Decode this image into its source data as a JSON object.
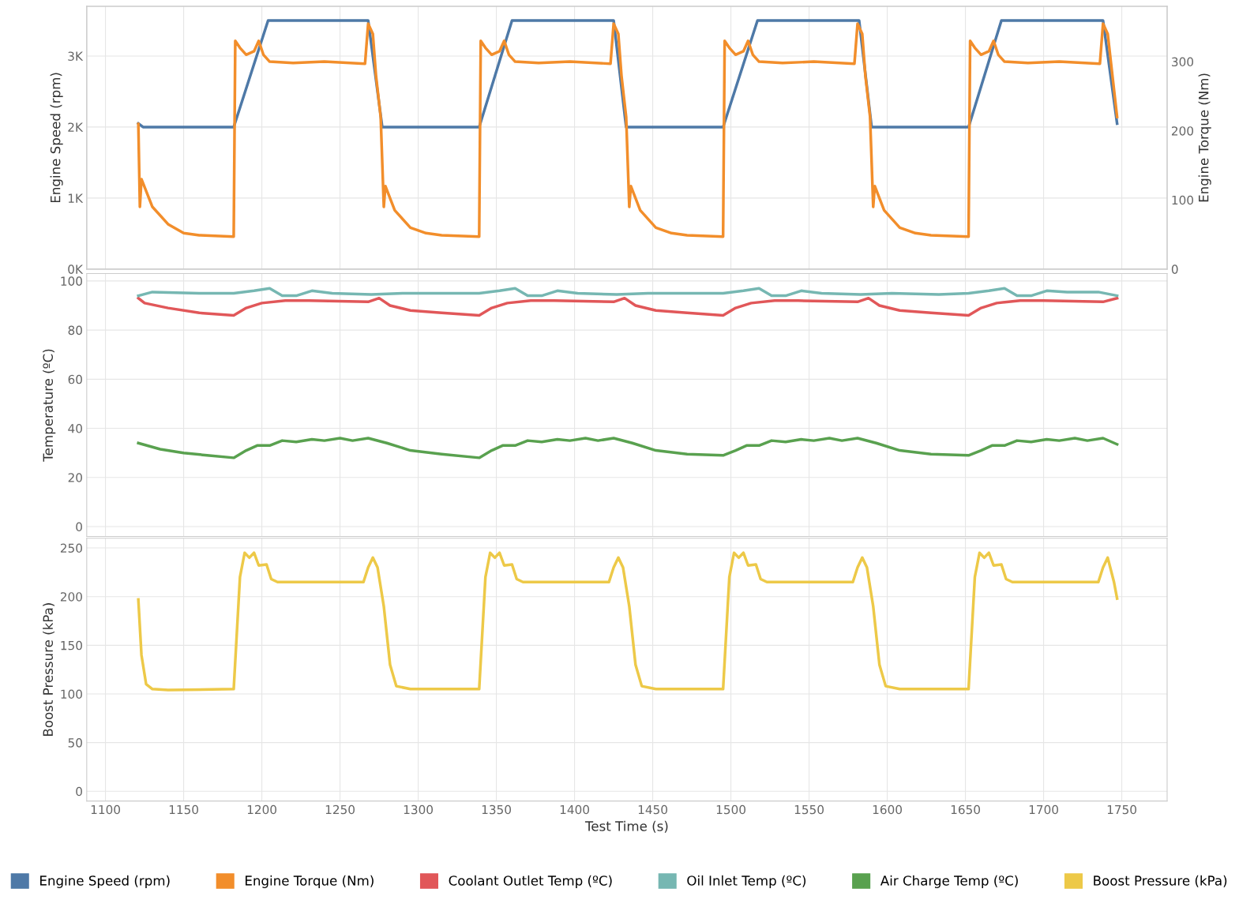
{
  "chart_data": [
    {
      "type": "line",
      "ylabel": "Engine Speed (rpm)",
      "y2label": "Engine Torque (Nm)",
      "xlim": [
        1088,
        1779
      ],
      "xticks": [
        1100,
        1150,
        1200,
        1250,
        1300,
        1350,
        1400,
        1450,
        1500,
        1550,
        1600,
        1650,
        1700,
        1750
      ],
      "ylim": [
        0,
        3700
      ],
      "yticks": [
        {
          "value": 0,
          "label": "0K"
        },
        {
          "value": 1000,
          "label": "1K"
        },
        {
          "value": 2000,
          "label": "2K"
        },
        {
          "value": 3000,
          "label": "3K"
        }
      ],
      "y2lim": [
        0,
        380
      ],
      "y2ticks": [
        0,
        100,
        200,
        300
      ],
      "grid": true,
      "legend": "bottom",
      "tick_labels": "y",
      "series": [
        {
          "name": "Engine Speed (rpm)",
          "color": "#4e79a7",
          "x": [
            1121,
            1124,
            1182,
            1204,
            1268,
            1277,
            1339,
            1360,
            1425,
            1433,
            1495,
            1517,
            1582,
            1590,
            1652,
            1673,
            1738,
            1747
          ],
          "values": [
            2050,
            2000,
            2000,
            3500,
            3500,
            2000,
            2000,
            3500,
            3500,
            2000,
            2000,
            3500,
            3500,
            2000,
            2000,
            3500,
            3500,
            2050
          ]
        },
        {
          "name": "Engine Torque (Nm)",
          "color": "#f28e2b",
          "axis": "y2",
          "x": [
            1121,
            1122,
            1123,
            1130,
            1140,
            1150,
            1160,
            1182,
            1183,
            1186,
            1190,
            1195,
            1198,
            1201,
            1205,
            1220,
            1240,
            1266,
            1268,
            1271,
            1273,
            1276,
            1278,
            1279,
            1285,
            1295,
            1305,
            1315,
            1339,
            1340,
            1343,
            1347,
            1352,
            1355,
            1358,
            1362,
            1377,
            1397,
            1423,
            1425,
            1428,
            1430,
            1433,
            1435,
            1436,
            1442,
            1452,
            1462,
            1472,
            1495,
            1496,
            1499,
            1503,
            1508,
            1511,
            1514,
            1518,
            1533,
            1553,
            1579,
            1581,
            1584,
            1586,
            1589,
            1591,
            1592,
            1598,
            1608,
            1618,
            1628,
            1652,
            1653,
            1656,
            1660,
            1665,
            1668,
            1671,
            1675,
            1690,
            1710,
            1736,
            1738,
            1741,
            1744,
            1747
          ],
          "values": [
            210,
            90,
            130,
            90,
            65,
            52,
            49,
            47,
            330,
            320,
            310,
            315,
            330,
            310,
            300,
            298,
            300,
            297,
            355,
            340,
            280,
            220,
            90,
            120,
            85,
            60,
            52,
            49,
            47,
            330,
            320,
            310,
            315,
            330,
            310,
            300,
            298,
            300,
            297,
            355,
            340,
            280,
            220,
            90,
            120,
            85,
            60,
            52,
            49,
            47,
            330,
            320,
            310,
            315,
            330,
            310,
            300,
            298,
            300,
            297,
            355,
            340,
            280,
            220,
            90,
            120,
            85,
            60,
            52,
            49,
            47,
            330,
            320,
            310,
            315,
            330,
            310,
            300,
            298,
            300,
            297,
            355,
            340,
            280,
            220
          ]
        }
      ]
    },
    {
      "type": "line",
      "ylabel": "Temperature (ºC)",
      "xlim": [
        1088,
        1779
      ],
      "xticks": [
        1100,
        1150,
        1200,
        1250,
        1300,
        1350,
        1400,
        1450,
        1500,
        1550,
        1600,
        1650,
        1700,
        1750
      ],
      "ylim": [
        -4,
        103
      ],
      "yticks": [
        0,
        20,
        40,
        60,
        80,
        100
      ],
      "grid": true,
      "legend": "bottom",
      "tick_labels": "y",
      "series": [
        {
          "name": "Coolant Outlet Temp (ºC)",
          "color": "#e15759",
          "x": [
            1121,
            1125,
            1140,
            1160,
            1182,
            1190,
            1200,
            1215,
            1230,
            1268,
            1275,
            1282,
            1295,
            1315,
            1339,
            1347,
            1357,
            1372,
            1387,
            1425,
            1432,
            1439,
            1452,
            1472,
            1495,
            1503,
            1513,
            1528,
            1543,
            1581,
            1588,
            1595,
            1608,
            1628,
            1652,
            1660,
            1670,
            1685,
            1700,
            1738,
            1747
          ],
          "values": [
            93,
            91,
            89,
            87,
            86,
            89,
            91,
            92,
            92,
            91.5,
            93,
            90,
            88,
            87,
            86,
            89,
            91,
            92,
            92,
            91.5,
            93,
            90,
            88,
            87,
            86,
            89,
            91,
            92,
            92,
            91.5,
            93,
            90,
            88,
            87,
            86,
            89,
            91,
            92,
            92,
            91.5,
            93
          ]
        },
        {
          "name": "Oil Inlet Temp (ºC)",
          "color": "#76b7b2",
          "x": [
            1121,
            1130,
            1160,
            1182,
            1195,
            1205,
            1213,
            1222,
            1232,
            1245,
            1270,
            1290,
            1320,
            1339,
            1352,
            1362,
            1370,
            1379,
            1389,
            1402,
            1427,
            1447,
            1477,
            1495,
            1508,
            1518,
            1526,
            1535,
            1545,
            1558,
            1583,
            1603,
            1633,
            1652,
            1665,
            1675,
            1683,
            1692,
            1702,
            1715,
            1735,
            1747
          ],
          "values": [
            94,
            95.5,
            95,
            95,
            96,
            97,
            94,
            94,
            96,
            95,
            94.5,
            95,
            95,
            95,
            96,
            97,
            94,
            94,
            96,
            95,
            94.5,
            95,
            95,
            95,
            96,
            97,
            94,
            94,
            96,
            95,
            94.5,
            95,
            94.5,
            95,
            96,
            97,
            94,
            94,
            96,
            95.5,
            95.5,
            94
          ]
        },
        {
          "name": "Air Charge Temp (ºC)",
          "color": "#59a14f",
          "x": [
            1121,
            1135,
            1150,
            1165,
            1182,
            1190,
            1197,
            1205,
            1213,
            1222,
            1232,
            1240,
            1250,
            1258,
            1268,
            1280,
            1295,
            1315,
            1339,
            1347,
            1354,
            1362,
            1370,
            1379,
            1389,
            1397,
            1407,
            1415,
            1425,
            1437,
            1452,
            1472,
            1495,
            1503,
            1510,
            1518,
            1526,
            1535,
            1545,
            1553,
            1563,
            1571,
            1581,
            1593,
            1608,
            1628,
            1652,
            1660,
            1667,
            1675,
            1683,
            1692,
            1702,
            1710,
            1720,
            1728,
            1738,
            1747
          ],
          "values": [
            34,
            31.5,
            30,
            29,
            28,
            31,
            33,
            33,
            35,
            34.5,
            35.5,
            35,
            36,
            35,
            36,
            34,
            31,
            29.5,
            28,
            31,
            33,
            33,
            35,
            34.5,
            35.5,
            35,
            36,
            35,
            36,
            34,
            31,
            29.5,
            29,
            31,
            33,
            33,
            35,
            34.5,
            35.5,
            35,
            36,
            35,
            36,
            34,
            31,
            29.5,
            29,
            31,
            33,
            33,
            35,
            34.5,
            35.5,
            35,
            36,
            35,
            36,
            33.5
          ]
        }
      ]
    },
    {
      "type": "line",
      "xlabel": "Test Time (s)",
      "ylabel": "Boost Pressure (kPa)",
      "xlim": [
        1088,
        1779
      ],
      "xticks": [
        1100,
        1150,
        1200,
        1250,
        1300,
        1350,
        1400,
        1450,
        1500,
        1550,
        1600,
        1650,
        1700,
        1750
      ],
      "ylim": [
        -10,
        260
      ],
      "yticks": [
        0,
        50,
        100,
        150,
        200,
        250
      ],
      "grid": true,
      "legend": "bottom",
      "series": [
        {
          "name": "Boost Pressure (kPa)",
          "color": "#edc948",
          "x": [
            1121,
            1123,
            1126,
            1130,
            1140,
            1182,
            1186,
            1189,
            1192,
            1195,
            1198,
            1203,
            1206,
            1210,
            1265,
            1268,
            1271,
            1274,
            1278,
            1282,
            1286,
            1295,
            1339,
            1343,
            1346,
            1349,
            1352,
            1355,
            1360,
            1363,
            1367,
            1422,
            1425,
            1428,
            1431,
            1435,
            1439,
            1443,
            1452,
            1495,
            1499,
            1502,
            1505,
            1508,
            1511,
            1516,
            1519,
            1523,
            1578,
            1581,
            1584,
            1587,
            1591,
            1595,
            1599,
            1608,
            1652,
            1656,
            1659,
            1662,
            1665,
            1668,
            1673,
            1676,
            1680,
            1735,
            1738,
            1741,
            1745,
            1747
          ],
          "values": [
            197,
            140,
            110,
            105,
            104,
            105,
            220,
            245,
            240,
            245,
            232,
            233,
            218,
            215,
            215,
            230,
            240,
            230,
            190,
            130,
            108,
            105,
            105,
            220,
            245,
            240,
            245,
            232,
            233,
            218,
            215,
            215,
            230,
            240,
            230,
            190,
            130,
            108,
            105,
            105,
            220,
            245,
            240,
            245,
            232,
            233,
            218,
            215,
            215,
            230,
            240,
            230,
            190,
            130,
            108,
            105,
            105,
            220,
            245,
            240,
            245,
            232,
            233,
            218,
            215,
            215,
            230,
            240,
            215,
            198
          ]
        }
      ]
    }
  ]
}
